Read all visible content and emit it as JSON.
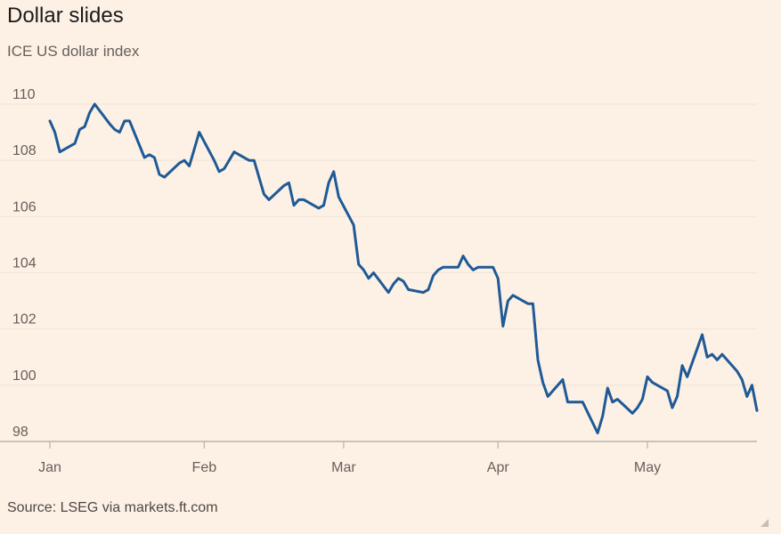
{
  "title": "Dollar slides",
  "subtitle": "ICE US dollar index",
  "source": "Source: LSEG via markets.ft.com",
  "colors": {
    "background": "#fdf1e6",
    "line": "#1f5a96",
    "grid": "#efe4d8",
    "baseline": "#bdb2a7"
  },
  "chart_data": {
    "type": "line",
    "title": "Dollar slides",
    "subtitle": "ICE US dollar index",
    "xlabel": "",
    "ylabel": "",
    "ylim": [
      98,
      110
    ],
    "yticks": [
      98,
      100,
      102,
      104,
      106,
      108,
      110
    ],
    "xticks": [
      {
        "label": "Jan",
        "date": "2025-01-01"
      },
      {
        "label": "Feb",
        "date": "2025-02-01"
      },
      {
        "label": "Mar",
        "date": "2025-03-01"
      },
      {
        "label": "Apr",
        "date": "2025-04-01"
      },
      {
        "label": "May",
        "date": "2025-05-01"
      }
    ],
    "xlim": [
      "2025-01-01",
      "2025-05-23"
    ],
    "grid": true,
    "legend": "none",
    "series": [
      {
        "x": [
          "2025-01-01",
          "2025-01-02",
          "2025-01-03",
          "2025-01-06",
          "2025-01-07",
          "2025-01-08",
          "2025-01-09",
          "2025-01-10",
          "2025-01-13",
          "2025-01-14",
          "2025-01-15",
          "2025-01-16",
          "2025-01-17",
          "2025-01-20",
          "2025-01-21",
          "2025-01-22",
          "2025-01-23",
          "2025-01-24",
          "2025-01-27",
          "2025-01-28",
          "2025-01-29",
          "2025-01-30",
          "2025-01-31",
          "2025-02-03",
          "2025-02-04",
          "2025-02-05",
          "2025-02-06",
          "2025-02-07",
          "2025-02-10",
          "2025-02-11",
          "2025-02-12",
          "2025-02-13",
          "2025-02-14",
          "2025-02-17",
          "2025-02-18",
          "2025-02-19",
          "2025-02-20",
          "2025-02-21",
          "2025-02-24",
          "2025-02-25",
          "2025-02-26",
          "2025-02-27",
          "2025-02-28",
          "2025-03-03",
          "2025-03-04",
          "2025-03-05",
          "2025-03-06",
          "2025-03-07",
          "2025-03-10",
          "2025-03-11",
          "2025-03-12",
          "2025-03-13",
          "2025-03-14",
          "2025-03-17",
          "2025-03-18",
          "2025-03-19",
          "2025-03-20",
          "2025-03-21",
          "2025-03-24",
          "2025-03-25",
          "2025-03-26",
          "2025-03-27",
          "2025-03-28",
          "2025-03-31",
          "2025-04-01",
          "2025-04-02",
          "2025-04-03",
          "2025-04-04",
          "2025-04-07",
          "2025-04-08",
          "2025-04-09",
          "2025-04-10",
          "2025-04-11",
          "2025-04-14",
          "2025-04-15",
          "2025-04-16",
          "2025-04-17",
          "2025-04-18",
          "2025-04-21",
          "2025-04-22",
          "2025-04-23",
          "2025-04-24",
          "2025-04-25",
          "2025-04-28",
          "2025-04-29",
          "2025-04-30",
          "2025-05-01",
          "2025-05-02",
          "2025-05-05",
          "2025-05-06",
          "2025-05-07",
          "2025-05-08",
          "2025-05-09",
          "2025-05-12",
          "2025-05-13",
          "2025-05-14",
          "2025-05-15",
          "2025-05-16",
          "2025-05-19",
          "2025-05-20",
          "2025-05-21",
          "2025-05-22",
          "2025-05-23"
        ],
        "y": [
          109.4,
          109.0,
          108.3,
          108.6,
          109.1,
          109.2,
          109.7,
          110.0,
          109.3,
          109.1,
          109.0,
          109.4,
          109.4,
          108.1,
          108.2,
          108.1,
          107.5,
          107.4,
          107.9,
          108.0,
          107.8,
          108.4,
          109.0,
          108.0,
          107.6,
          107.7,
          108.0,
          108.3,
          108.0,
          108.0,
          107.4,
          106.8,
          106.6,
          107.1,
          107.2,
          106.4,
          106.6,
          106.6,
          106.3,
          106.4,
          107.2,
          107.6,
          106.7,
          105.7,
          104.3,
          104.1,
          103.8,
          104.0,
          103.3,
          103.6,
          103.8,
          103.7,
          103.4,
          103.3,
          103.4,
          103.9,
          104.1,
          104.2,
          104.2,
          104.6,
          104.3,
          104.1,
          104.2,
          104.2,
          103.8,
          102.1,
          103.0,
          103.2,
          102.9,
          102.9,
          100.9,
          100.1,
          99.6,
          100.2,
          99.4,
          99.4,
          99.4,
          99.4,
          98.3,
          98.9,
          99.9,
          99.4,
          99.5,
          99.0,
          99.2,
          99.5,
          100.3,
          100.1,
          99.8,
          99.2,
          99.6,
          100.7,
          100.3,
          101.8,
          101.0,
          101.1,
          100.9,
          101.1,
          100.5,
          100.2,
          99.6,
          100.0,
          99.1
        ]
      }
    ]
  }
}
